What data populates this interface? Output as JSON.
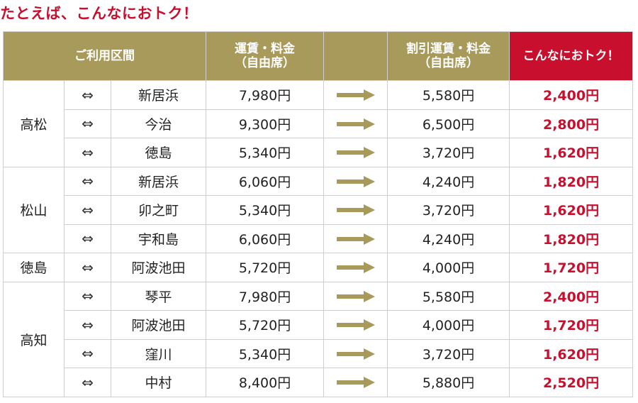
{
  "title": "たとえば、こんなにおトク！",
  "table": {
    "headers": {
      "route": "ご利用区間",
      "fare_line1": "運賃・料金",
      "fare_line2": "（自由席）",
      "discount_line1": "割引運賃・料金",
      "discount_line2": "（自由席）",
      "savings": "こんなにおトク！"
    },
    "bidirectional_symbol": "⇔",
    "arrow_icon": "right-arrow-icon",
    "colors": {
      "header_bg": "#a89a5a",
      "accent": "#c8102e",
      "arrow": "#a89a5a"
    },
    "groups": [
      {
        "origin": "高松",
        "rows": [
          {
            "destination": "新居浜",
            "fare": "7,980円",
            "discount": "5,580円",
            "savings": "2,400円"
          },
          {
            "destination": "今治",
            "fare": "9,300円",
            "discount": "6,500円",
            "savings": "2,800円"
          },
          {
            "destination": "徳島",
            "fare": "5,340円",
            "discount": "3,720円",
            "savings": "1,620円"
          }
        ]
      },
      {
        "origin": "松山",
        "rows": [
          {
            "destination": "新居浜",
            "fare": "6,060円",
            "discount": "4,240円",
            "savings": "1,820円"
          },
          {
            "destination": "卯之町",
            "fare": "5,340円",
            "discount": "3,720円",
            "savings": "1,620円"
          },
          {
            "destination": "宇和島",
            "fare": "6,060円",
            "discount": "4,240円",
            "savings": "1,820円"
          }
        ]
      },
      {
        "origin": "徳島",
        "rows": [
          {
            "destination": "阿波池田",
            "fare": "5,720円",
            "discount": "4,000円",
            "savings": "1,720円"
          }
        ]
      },
      {
        "origin": "高知",
        "rows": [
          {
            "destination": "琴平",
            "fare": "7,980円",
            "discount": "5,580円",
            "savings": "2,400円"
          },
          {
            "destination": "阿波池田",
            "fare": "5,720円",
            "discount": "4,000円",
            "savings": "1,720円"
          },
          {
            "destination": "窪川",
            "fare": "5,340円",
            "discount": "3,720円",
            "savings": "1,620円"
          },
          {
            "destination": "中村",
            "fare": "8,400円",
            "discount": "5,880円",
            "savings": "2,520円"
          }
        ]
      }
    ]
  }
}
